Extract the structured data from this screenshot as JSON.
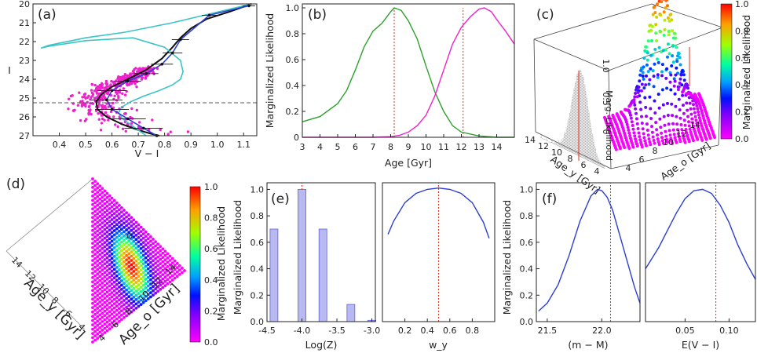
{
  "colors": {
    "green": "#2ca02c",
    "magenta": "#ee22cc",
    "blue": "#2b3fd0",
    "cyan": "#3cc4c4",
    "black": "#111111",
    "red_dashed": "#e0301e",
    "hist_fill": "#b9b9f2",
    "hist_edge": "#6060d8"
  },
  "colorbars": {
    "label": "Marginalized Likelihood",
    "ticks": [
      "0.0",
      "0.2",
      "0.4",
      "0.6",
      "0.8",
      "1.0"
    ]
  },
  "chart_data": [
    {
      "panel": "(a)",
      "type": "scatter",
      "xlabel": "V − I",
      "ylabel": "I",
      "xlim": [
        0.3,
        1.15
      ],
      "ylim": [
        27,
        20
      ],
      "y_inverted": true,
      "xticks": [
        "0.4",
        "0.5",
        "0.6",
        "0.7",
        "0.8",
        "0.9",
        "1.0",
        "1.1"
      ],
      "yticks": [
        "20",
        "21",
        "22",
        "23",
        "24",
        "25",
        "26",
        "27"
      ],
      "completeness_limit_I": 25.25,
      "series": [
        {
          "name": "isochrone (black)",
          "x": [
            1.13,
            1.05,
            0.96,
            0.9,
            0.86,
            0.83,
            0.79,
            0.73,
            0.66,
            0.6,
            0.56,
            0.54,
            0.545,
            0.58,
            0.64,
            0.7,
            0.75,
            0.78
          ],
          "y": [
            20.0,
            20.4,
            20.8,
            21.3,
            21.8,
            22.3,
            22.9,
            23.5,
            24.0,
            24.4,
            24.8,
            25.2,
            25.6,
            26.0,
            26.4,
            26.7,
            26.9,
            27.0
          ]
        },
        {
          "name": "isochrone (cyan)",
          "x": [
            1.13,
            0.98,
            0.83,
            0.65,
            0.5,
            0.36,
            0.33,
            0.36,
            0.5,
            0.68,
            0.8,
            0.86,
            0.87,
            0.86,
            0.83,
            0.78,
            0.72,
            0.67,
            0.635,
            0.625,
            0.64,
            0.67,
            0.7,
            0.73
          ],
          "y": [
            20.0,
            20.5,
            21.0,
            21.5,
            21.8,
            22.2,
            22.35,
            22.25,
            21.95,
            21.8,
            22.3,
            23.0,
            23.6,
            24.0,
            24.3,
            24.6,
            24.9,
            25.2,
            25.5,
            25.8,
            26.1,
            26.4,
            26.7,
            27.0
          ]
        },
        {
          "name": "binned CMD (blue)",
          "x": [
            1.12,
            0.97,
            0.86,
            0.83,
            0.79,
            0.73,
            0.66,
            0.6,
            0.58,
            0.6,
            0.66,
            0.72,
            0.77
          ],
          "y": [
            20.1,
            20.6,
            21.9,
            22.6,
            23.2,
            23.7,
            24.1,
            24.6,
            25.1,
            25.6,
            26.1,
            26.6,
            27.0
          ]
        }
      ]
    },
    {
      "panel": "(b)",
      "type": "line",
      "xlabel": "Age [Gyr]",
      "ylabel": "Marginalized Likelihood",
      "xlim": [
        3,
        15
      ],
      "ylim": [
        0,
        1.0
      ],
      "xticks": [
        "3",
        "4",
        "5",
        "6",
        "7",
        "8",
        "9",
        "10",
        "11",
        "12",
        "13",
        "14"
      ],
      "yticks": [
        "0",
        "0.2",
        "0.4",
        "0.6",
        "0.8",
        "1.0"
      ],
      "markers_x": [
        8.2,
        12.1
      ],
      "series": [
        {
          "name": "Age_y",
          "x": [
            3,
            4,
            5,
            5.5,
            6,
            6.5,
            7,
            7.5,
            8,
            8.2,
            8.6,
            9,
            9.5,
            10,
            10.5,
            11,
            11.5,
            12,
            13,
            14,
            15
          ],
          "y": [
            0.12,
            0.16,
            0.26,
            0.36,
            0.52,
            0.7,
            0.82,
            0.88,
            0.97,
            1.0,
            0.98,
            0.9,
            0.76,
            0.55,
            0.35,
            0.2,
            0.09,
            0.04,
            0.01,
            0.0,
            0.0
          ]
        },
        {
          "name": "Age_o",
          "x": [
            3,
            7,
            8,
            8.5,
            9,
            9.5,
            10,
            10.5,
            11,
            11.5,
            12,
            12.5,
            13,
            13.3,
            13.7,
            14,
            14.5,
            15
          ],
          "y": [
            0.0,
            0.0,
            0.005,
            0.015,
            0.04,
            0.09,
            0.17,
            0.32,
            0.52,
            0.72,
            0.85,
            0.93,
            0.99,
            1.0,
            0.97,
            0.91,
            0.82,
            0.72
          ]
        }
      ]
    },
    {
      "panel": "(c)",
      "type": "surface3d",
      "xlabel": "Age_y [Gyr]",
      "ylabel": "Age_o [Gyr]",
      "zlabel": "Marg. Likelihood",
      "age_y_ticks": [
        "14",
        "12",
        "10",
        "8",
        "6",
        "4"
      ],
      "age_o_ticks": [
        "4",
        "6",
        "8",
        "10",
        "12",
        "14"
      ],
      "z_ticks": [
        "0",
        "0.5",
        "1.0"
      ],
      "peak": {
        "age_y": 8.2,
        "age_o": 12.1,
        "value": 1.0
      }
    },
    {
      "panel": "(d)",
      "type": "heatmap",
      "xlabel": "Age_y [Gyr]",
      "ylabel": "Age_o [Gyr]",
      "age_y_ticks": [
        "14",
        "12",
        "10",
        "8",
        "6",
        "4"
      ],
      "age_o_ticks": [
        "4",
        "6",
        "8",
        "10",
        "12",
        "14"
      ],
      "peak": {
        "age_y": 8.2,
        "age_o": 12.1
      }
    },
    {
      "panel": "(e)",
      "type": "bar",
      "xlabel": "Log(Z)",
      "ylabel": "Marginalized Likelihood",
      "xlim": [
        -4.5,
        -2.95
      ],
      "ylim": [
        0,
        1.05
      ],
      "xticks": [
        "-4.5",
        "-4.0",
        "-3.5",
        "-3.0"
      ],
      "yticks": [
        "0.0",
        "0.2",
        "0.4",
        "0.6",
        "0.8",
        "1.0"
      ],
      "marker_x": -4.0,
      "categories": [
        -4.4,
        -4.0,
        -3.7,
        -3.3,
        -3.0
      ],
      "values": [
        0.7,
        1.0,
        0.7,
        0.13,
        0.01
      ]
    },
    {
      "panel": "(e)",
      "type": "line",
      "xlabel": "w_y",
      "xlim": [
        0.0,
        1.0
      ],
      "ylim": [
        0,
        1.05
      ],
      "xticks": [
        "0.2",
        "0.4",
        "0.6",
        "0.8"
      ],
      "marker_x": 0.5,
      "series": [
        {
          "name": "w_y",
          "x": [
            0.05,
            0.1,
            0.2,
            0.3,
            0.4,
            0.5,
            0.6,
            0.7,
            0.8,
            0.9,
            0.95
          ],
          "y": [
            0.66,
            0.76,
            0.9,
            0.97,
            1.0,
            1.01,
            1.0,
            0.97,
            0.9,
            0.75,
            0.63
          ]
        }
      ]
    },
    {
      "panel": "(f)",
      "type": "line",
      "xlabel": "(m − M)",
      "ylabel": "Marginalized Likelihood",
      "xlim": [
        21.4,
        22.35
      ],
      "ylim": [
        0,
        1.05
      ],
      "xticks": [
        "21.5",
        "22.0"
      ],
      "yticks": [
        "0.0",
        "0.2",
        "0.4",
        "0.6",
        "0.8",
        "1.0"
      ],
      "marker_x": 22.08,
      "series": [
        {
          "name": "distance modulus",
          "x": [
            21.42,
            21.5,
            21.6,
            21.7,
            21.8,
            21.9,
            21.96,
            22.0,
            22.05,
            22.1,
            22.2,
            22.3,
            22.35
          ],
          "y": [
            0.08,
            0.14,
            0.28,
            0.5,
            0.76,
            0.95,
            1.0,
            0.99,
            0.94,
            0.84,
            0.55,
            0.26,
            0.14
          ]
        }
      ]
    },
    {
      "panel": "(f)",
      "type": "line",
      "xlabel": "E(V − I)",
      "xlim": [
        0.005,
        0.13
      ],
      "ylim": [
        0,
        1.05
      ],
      "xticks": [
        "0.05",
        "0.10"
      ],
      "marker_x": 0.085,
      "series": [
        {
          "name": "reddening",
          "x": [
            0.005,
            0.02,
            0.03,
            0.04,
            0.05,
            0.06,
            0.07,
            0.08,
            0.09,
            0.1,
            0.11,
            0.12,
            0.13
          ],
          "y": [
            0.4,
            0.56,
            0.69,
            0.82,
            0.93,
            0.99,
            1.0,
            0.97,
            0.88,
            0.75,
            0.58,
            0.44,
            0.32
          ]
        }
      ]
    }
  ]
}
